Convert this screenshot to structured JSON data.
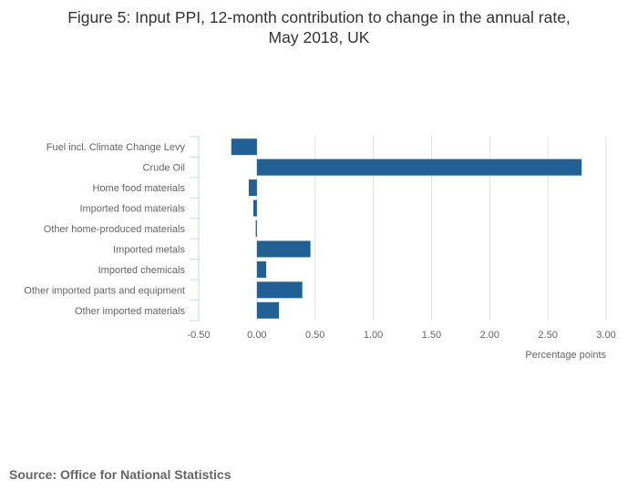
{
  "chart_data": {
    "type": "bar",
    "orientation": "horizontal",
    "title_line1": "Figure 5: Input PPI, 12-month contribution to change in the annual rate,",
    "title_line2": "May 2018, UK",
    "categories": [
      "Fuel incl. Climate Change Levy",
      "Crude Oil",
      "Home food materials",
      "Imported food materials",
      "Other home-produced materials",
      "Imported metals",
      "Imported chemicals",
      "Other imported parts and equipment",
      "Other imported materials"
    ],
    "values": [
      -0.22,
      2.79,
      -0.07,
      -0.03,
      -0.01,
      0.46,
      0.08,
      0.39,
      0.19
    ],
    "xlabel": "Percentage points",
    "xlim": [
      -0.5,
      3.0
    ],
    "xticks": [
      "-0.50",
      "0.00",
      "0.50",
      "1.00",
      "1.50",
      "2.00",
      "2.50",
      "3.00"
    ],
    "grid": true,
    "bar_color": "#206095",
    "source": "Source: Office for National Statistics"
  }
}
